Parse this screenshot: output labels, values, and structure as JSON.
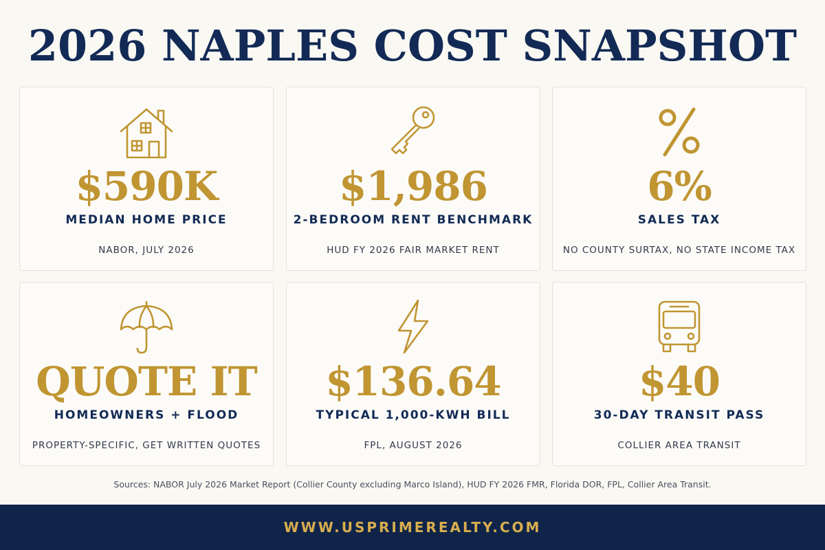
{
  "title": "2026 NAPLES COST SNAPSHOT",
  "colors": {
    "navy": "#122a55",
    "gold": "#c09532",
    "background": "#faf8f3",
    "footer": "#0f2448",
    "footer_text": "#d8ae4e"
  },
  "cards": [
    {
      "icon": "house-icon",
      "value": "$590K",
      "label": "MEDIAN HOME PRICE",
      "note": "NABOR, JULY 2026"
    },
    {
      "icon": "key-icon",
      "value": "$1,986",
      "label": "2-BEDROOM RENT BENCHMARK",
      "note": "HUD FY 2026 FAIR MARKET RENT"
    },
    {
      "icon": "percent-icon",
      "value": "6%",
      "label": "SALES TAX",
      "note": "NO COUNTY SURTAX, NO STATE INCOME TAX"
    },
    {
      "icon": "umbrella-icon",
      "value": "QUOTE IT",
      "label": "HOMEOWNERS + FLOOD",
      "note": "PROPERTY-SPECIFIC, GET WRITTEN QUOTES"
    },
    {
      "icon": "lightning-icon",
      "value": "$136.64",
      "label": "TYPICAL 1,000-KWH BILL",
      "note": "FPL, AUGUST 2026"
    },
    {
      "icon": "bus-icon",
      "value": "$40",
      "label": "30-DAY TRANSIT PASS",
      "note": "COLLIER AREA TRANSIT"
    }
  ],
  "sources": "Sources: NABOR July 2026 Market Report (Collier County excluding Marco Island), HUD FY 2026 FMR, Florida DOR, FPL, Collier Area Transit.",
  "footer": {
    "url": "WWW.USPRIMEREALTY.COM"
  }
}
